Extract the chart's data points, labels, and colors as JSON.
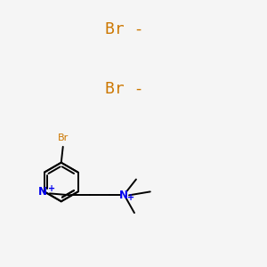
{
  "background_color": "#f5f5f5",
  "bond_color": "#000000",
  "n_color": "#0000ee",
  "br_ion_color": "#cc7700",
  "br_atom_color": "#cc7700",
  "br_ion1_text": "Br -",
  "br_ion2_text": "Br -",
  "br_ion_fontsize": 13,
  "figsize": [
    3.0,
    3.0
  ],
  "dpi": 100,
  "lw": 1.4
}
